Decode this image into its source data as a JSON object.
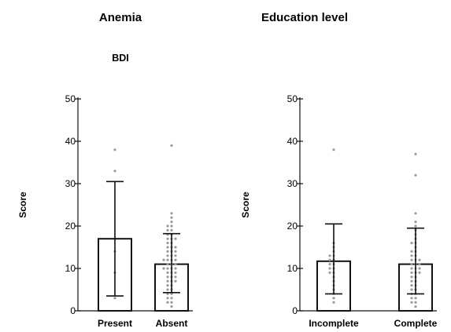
{
  "header": {
    "left_title": "Anemia",
    "left_subtitle": "BDI",
    "right_title": "Education level"
  },
  "chart_data": [
    {
      "type": "bar",
      "title": "Anemia",
      "subtitle": "BDI",
      "ylabel": "Score",
      "xlabel": "",
      "ylim": [
        0,
        50
      ],
      "yticks": [
        "0",
        "10",
        "20",
        "30",
        "40",
        "50"
      ],
      "categories": [
        "Present",
        "Absent"
      ],
      "values": [
        17,
        11
      ],
      "error_low": [
        3.5,
        4.3
      ],
      "error_high": [
        30.5,
        18.2
      ],
      "points": [
        [
          38,
          33,
          14,
          9,
          3
        ],
        [
          39,
          23,
          22,
          21,
          20,
          20,
          19,
          19,
          18,
          18,
          17,
          17,
          17,
          16,
          16,
          15,
          15,
          15,
          14,
          14,
          14,
          13,
          13,
          13,
          12,
          12,
          12,
          12,
          11,
          11,
          11,
          10,
          10,
          10,
          10,
          9,
          9,
          9,
          8,
          8,
          8,
          7,
          7,
          7,
          6,
          6,
          5,
          5,
          4,
          4,
          3,
          3,
          2,
          2,
          1
        ]
      ]
    },
    {
      "type": "bar",
      "title": "Education level",
      "ylabel": "Score",
      "xlabel": "",
      "ylim": [
        0,
        50
      ],
      "yticks": [
        "0",
        "10",
        "20",
        "30",
        "40",
        "50"
      ],
      "categories": [
        "Incomplete",
        "Complete"
      ],
      "values": [
        11.7,
        11
      ],
      "error_low": [
        4,
        4
      ],
      "error_high": [
        20.5,
        19.5
      ],
      "points": [
        [
          38,
          16,
          15,
          14,
          13,
          13,
          12,
          12,
          11,
          11,
          10,
          10,
          9,
          9,
          8,
          7,
          6,
          5,
          4,
          3,
          2
        ],
        [
          37,
          32,
          23,
          21,
          20,
          19,
          18,
          17,
          16,
          16,
          15,
          14,
          14,
          13,
          13,
          12,
          12,
          12,
          11,
          11,
          11,
          10,
          10,
          10,
          9,
          9,
          9,
          8,
          8,
          7,
          7,
          6,
          6,
          5,
          5,
          4,
          4,
          3,
          3,
          2,
          2,
          1
        ]
      ]
    }
  ]
}
